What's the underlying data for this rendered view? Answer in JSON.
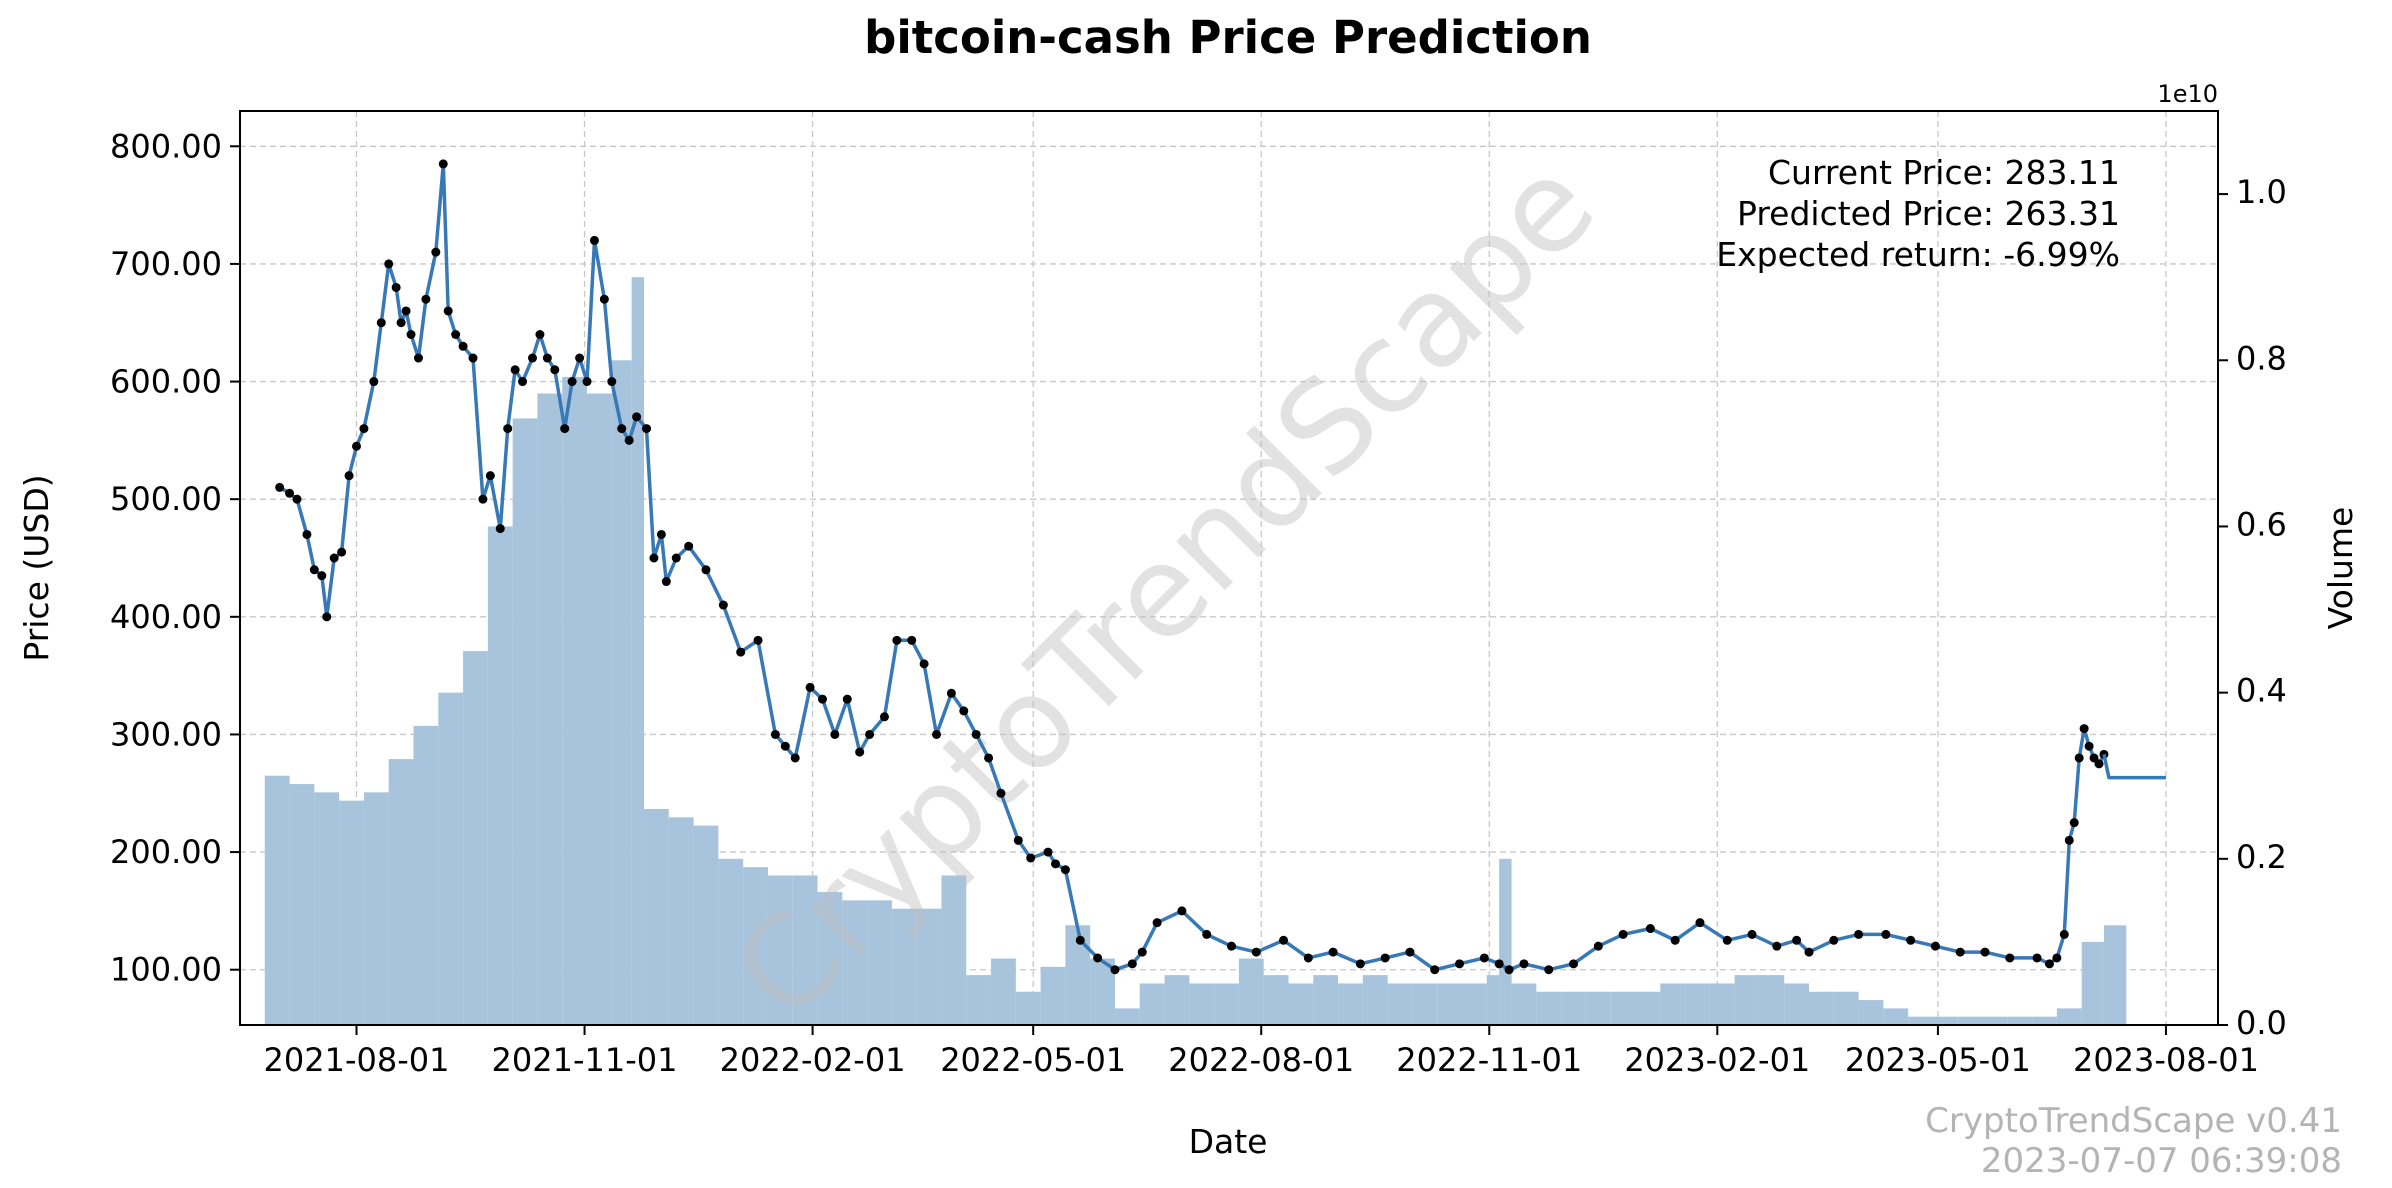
{
  "chart_data": {
    "type": "line",
    "title": "bitcoin-cash Price Prediction",
    "xlabel": "Date",
    "ylabel": "Price (USD)",
    "y2label": "Volume",
    "y2_exponent_label": "1e10",
    "xlim": [
      "2021-06-15",
      "2023-08-22"
    ],
    "ylim": [
      53,
      830
    ],
    "y2lim": [
      0,
      1.1
    ],
    "x_ticks": [
      "2021-08-01",
      "2021-11-01",
      "2022-02-01",
      "2022-05-01",
      "2022-08-01",
      "2022-11-01",
      "2023-02-01",
      "2023-05-01",
      "2023-08-01"
    ],
    "y_ticks": [
      "100.00",
      "200.00",
      "300.00",
      "400.00",
      "500.00",
      "600.00",
      "700.00",
      "800.00"
    ],
    "y2_ticks": [
      "0.0",
      "0.2",
      "0.4",
      "0.6",
      "0.8",
      "1.0"
    ],
    "grid": true,
    "price_color": "#3778b6",
    "marker_color": "#000000",
    "volume_color": "#a8c4dc",
    "series": [
      {
        "name": "Price",
        "x": [
          "2021-07-01",
          "2021-07-05",
          "2021-07-08",
          "2021-07-12",
          "2021-07-15",
          "2021-07-18",
          "2021-07-20",
          "2021-07-23",
          "2021-07-26",
          "2021-07-29",
          "2021-08-01",
          "2021-08-04",
          "2021-08-08",
          "2021-08-11",
          "2021-08-14",
          "2021-08-17",
          "2021-08-19",
          "2021-08-21",
          "2021-08-23",
          "2021-08-26",
          "2021-08-29",
          "2021-09-02",
          "2021-09-05",
          "2021-09-07",
          "2021-09-10",
          "2021-09-13",
          "2021-09-17",
          "2021-09-21",
          "2021-09-24",
          "2021-09-28",
          "2021-10-01",
          "2021-10-04",
          "2021-10-07",
          "2021-10-11",
          "2021-10-14",
          "2021-10-17",
          "2021-10-20",
          "2021-10-24",
          "2021-10-27",
          "2021-10-30",
          "2021-11-02",
          "2021-11-05",
          "2021-11-09",
          "2021-11-12",
          "2021-11-16",
          "2021-11-19",
          "2021-11-22",
          "2021-11-26",
          "2021-11-29",
          "2021-12-02",
          "2021-12-04",
          "2021-12-08",
          "2021-12-13",
          "2021-12-20",
          "2021-12-27",
          "2022-01-03",
          "2022-01-10",
          "2022-01-17",
          "2022-01-21",
          "2022-01-25",
          "2022-01-31",
          "2022-02-05",
          "2022-02-10",
          "2022-02-15",
          "2022-02-20",
          "2022-02-24",
          "2022-03-02",
          "2022-03-07",
          "2022-03-13",
          "2022-03-18",
          "2022-03-23",
          "2022-03-29",
          "2022-04-03",
          "2022-04-08",
          "2022-04-13",
          "2022-04-18",
          "2022-04-25",
          "2022-04-30",
          "2022-05-07",
          "2022-05-10",
          "2022-05-14",
          "2022-05-20",
          "2022-05-27",
          "2022-06-03",
          "2022-06-10",
          "2022-06-14",
          "2022-06-20",
          "2022-06-30",
          "2022-07-10",
          "2022-07-20",
          "2022-07-30",
          "2022-08-10",
          "2022-08-20",
          "2022-08-30",
          "2022-09-10",
          "2022-09-20",
          "2022-09-30",
          "2022-10-10",
          "2022-10-20",
          "2022-10-30",
          "2022-11-05",
          "2022-11-09",
          "2022-11-15",
          "2022-11-25",
          "2022-12-05",
          "2022-12-15",
          "2022-12-25",
          "2023-01-05",
          "2023-01-15",
          "2023-01-25",
          "2023-02-05",
          "2023-02-15",
          "2023-02-25",
          "2023-03-05",
          "2023-03-10",
          "2023-03-20",
          "2023-03-30",
          "2023-04-10",
          "2023-04-20",
          "2023-04-30",
          "2023-05-10",
          "2023-05-20",
          "2023-05-30",
          "2023-06-10",
          "2023-06-15",
          "2023-06-18",
          "2023-06-21",
          "2023-06-23",
          "2023-06-25",
          "2023-06-27",
          "2023-06-29",
          "2023-07-01",
          "2023-07-03",
          "2023-07-05",
          "2023-07-07"
        ],
        "y": [
          510,
          505,
          500,
          470,
          440,
          435,
          400,
          450,
          455,
          520,
          545,
          560,
          600,
          650,
          700,
          680,
          650,
          660,
          640,
          620,
          670,
          710,
          785,
          660,
          640,
          630,
          620,
          500,
          520,
          475,
          560,
          610,
          600,
          620,
          640,
          620,
          610,
          560,
          600,
          620,
          600,
          720,
          670,
          600,
          560,
          550,
          570,
          560,
          450,
          470,
          430,
          450,
          460,
          440,
          410,
          370,
          380,
          300,
          290,
          280,
          340,
          330,
          300,
          330,
          285,
          300,
          315,
          380,
          380,
          360,
          300,
          335,
          320,
          300,
          280,
          250,
          210,
          195,
          200,
          190,
          185,
          125,
          110,
          100,
          105,
          115,
          140,
          150,
          130,
          120,
          115,
          125,
          110,
          115,
          105,
          110,
          115,
          100,
          105,
          110,
          105,
          100,
          105,
          100,
          105,
          120,
          130,
          135,
          125,
          140,
          125,
          130,
          120,
          125,
          115,
          125,
          130,
          130,
          125,
          120,
          115,
          115,
          110,
          110,
          105,
          110,
          130,
          210,
          225,
          280,
          305,
          290,
          280,
          275,
          283.11
        ]
      },
      {
        "name": "Prediction",
        "x": [
          "2023-07-07",
          "2023-07-09",
          "2023-08-01"
        ],
        "y": [
          283.11,
          263.31,
          263.31
        ]
      },
      {
        "name": "Volume",
        "x": [
          "2021-06-25",
          "2021-07-05",
          "2021-07-15",
          "2021-07-25",
          "2021-08-04",
          "2021-08-14",
          "2021-08-24",
          "2021-09-03",
          "2021-09-13",
          "2021-09-23",
          "2021-10-03",
          "2021-10-13",
          "2021-10-23",
          "2021-11-02",
          "2021-11-12",
          "2021-11-20",
          "2021-11-25",
          "2021-12-05",
          "2021-12-15",
          "2021-12-25",
          "2022-01-04",
          "2022-01-14",
          "2022-01-24",
          "2022-02-03",
          "2022-02-13",
          "2022-02-23",
          "2022-03-05",
          "2022-03-15",
          "2022-03-25",
          "2022-04-04",
          "2022-04-14",
          "2022-04-24",
          "2022-05-04",
          "2022-05-14",
          "2022-05-24",
          "2022-06-03",
          "2022-06-13",
          "2022-06-23",
          "2022-07-03",
          "2022-07-13",
          "2022-07-23",
          "2022-08-02",
          "2022-08-12",
          "2022-08-22",
          "2022-09-01",
          "2022-09-11",
          "2022-09-21",
          "2022-10-01",
          "2022-10-11",
          "2022-10-21",
          "2022-10-31",
          "2022-11-05",
          "2022-11-10",
          "2022-11-20",
          "2022-11-30",
          "2022-12-10",
          "2022-12-20",
          "2022-12-30",
          "2023-01-09",
          "2023-01-19",
          "2023-01-29",
          "2023-02-08",
          "2023-02-18",
          "2023-02-28",
          "2023-03-10",
          "2023-03-20",
          "2023-03-30",
          "2023-04-09",
          "2023-04-19",
          "2023-04-29",
          "2023-05-09",
          "2023-05-19",
          "2023-05-29",
          "2023-06-08",
          "2023-06-18",
          "2023-06-28",
          "2023-07-07"
        ],
        "values": [
          0.3,
          0.29,
          0.28,
          0.27,
          0.28,
          0.32,
          0.36,
          0.4,
          0.45,
          0.6,
          0.73,
          0.76,
          0.78,
          0.76,
          0.8,
          0.9,
          0.26,
          0.25,
          0.24,
          0.2,
          0.19,
          0.18,
          0.18,
          0.16,
          0.15,
          0.15,
          0.14,
          0.14,
          0.18,
          0.06,
          0.08,
          0.04,
          0.07,
          0.12,
          0.08,
          0.02,
          0.05,
          0.06,
          0.05,
          0.05,
          0.08,
          0.06,
          0.05,
          0.06,
          0.05,
          0.06,
          0.05,
          0.05,
          0.05,
          0.05,
          0.06,
          0.2,
          0.05,
          0.04,
          0.04,
          0.04,
          0.04,
          0.04,
          0.05,
          0.05,
          0.05,
          0.06,
          0.06,
          0.05,
          0.04,
          0.04,
          0.03,
          0.02,
          0.01,
          0.01,
          0.01,
          0.01,
          0.01,
          0.01,
          0.02,
          0.1,
          0.12
        ]
      }
    ],
    "annotations": [
      {
        "text": "Current Price: 283.11"
      },
      {
        "text": "Predicted Price: 263.31"
      },
      {
        "text": "Expected return: -6.99%"
      }
    ]
  },
  "watermark": "CryptoTrendScape",
  "footer": {
    "version": "CryptoTrendScape v0.41",
    "timestamp": "2023-07-07 06:39:08"
  }
}
